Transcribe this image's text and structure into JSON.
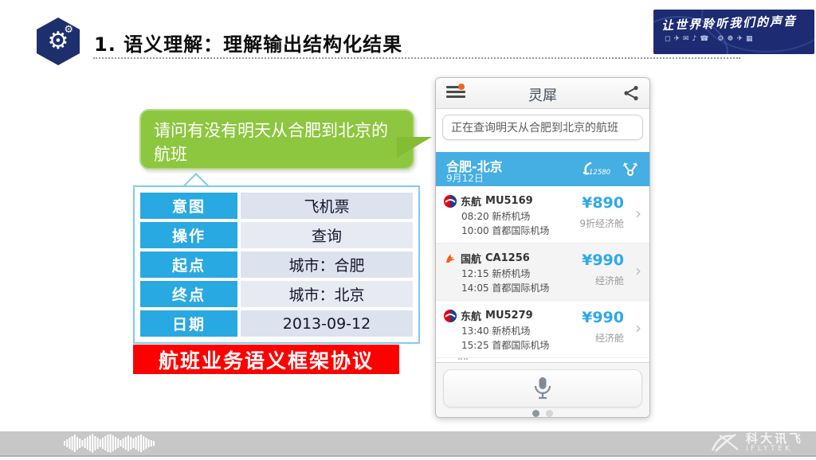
{
  "slide": {
    "title": "1. 语义理解：理解输出结构化结果",
    "header_icon_glyph": "⚙",
    "banner": {
      "slogan": "让世界聆听我们的声音",
      "icons_glyphs": "◻✈✉♪☎ ⚙☸✈▦"
    },
    "bubble_text": "请问有没有明天从合肥到北京的航班",
    "frame": {
      "rows": [
        {
          "label": "意图",
          "value": "飞机票"
        },
        {
          "label": "操作",
          "value": "查询"
        },
        {
          "label": "起点",
          "value": "城市：合肥"
        },
        {
          "label": "终点",
          "value": "城市：北京"
        },
        {
          "label": "日期",
          "value": "2013-09-12"
        }
      ],
      "caption": "航班业务语义框架协议"
    },
    "footer": {
      "brand_cn": "科大讯飞",
      "brand_en": "iFLYTEK"
    }
  },
  "phone": {
    "app_title": "灵犀",
    "query_text": "正在查询明天从合肥到北京的航班",
    "route": {
      "title": "合肥-北京",
      "date": "9月12日",
      "service_number": "12580"
    },
    "chevron_glyph": "›",
    "flights": [
      {
        "airline": "东航",
        "flight_no": "MU5169",
        "departure": "08:20 新桥机场",
        "arrival": "10:00 首都国际机场",
        "price": "¥890",
        "cabin": "9折经济舱"
      },
      {
        "airline": "国航",
        "flight_no": "CA1256",
        "departure": "12:15 新桥机场",
        "arrival": "14:05 首都国际机场",
        "price": "¥990",
        "cabin": "经济舱"
      },
      {
        "airline": "东航",
        "flight_no": "MU5279",
        "departure": "13:40 新桥机场",
        "arrival": "15:25 首都国际机场",
        "price": "¥990",
        "cabin": "经济舱"
      }
    ]
  },
  "colors": {
    "table_label_blue": "#29A9E1",
    "route_bar_blue": "#45AEE3",
    "price_blue": "#2FA8EA",
    "bubble_green": "#8DC63F",
    "caption_red": "#FE0000",
    "hexagon_navy": "#1E2F6E",
    "banner_navy": "#1D2B72",
    "footer_gray": "#C7C7C7"
  }
}
